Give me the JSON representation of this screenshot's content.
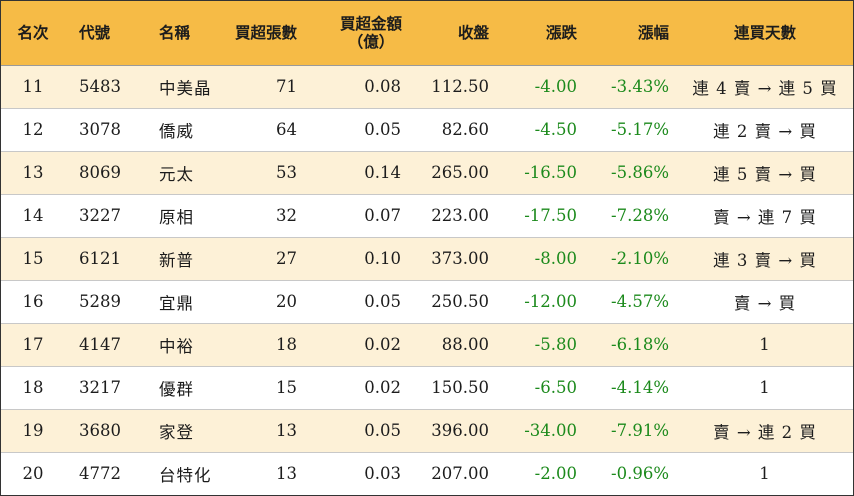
{
  "colors": {
    "header_bg": "#f6bb46",
    "row_alt_bg": "#fdf1d7",
    "negative": "#1c8a1c"
  },
  "header": {
    "rank": "名次",
    "code": "代號",
    "name": "名稱",
    "volume": "買超張數",
    "amount_line1": "買超金額",
    "amount_line2": "（億）",
    "close": "收盤",
    "change": "漲跌",
    "change_pct": "漲幅",
    "days": "連買天數"
  },
  "rows": [
    {
      "rank": "11",
      "code": "5483",
      "name": "中美晶",
      "volume": "71",
      "amount": "0.08",
      "close": "112.50",
      "change": "-4.00",
      "change_pct": "-3.43%",
      "days": "連 4 賣 → 連 5 買"
    },
    {
      "rank": "12",
      "code": "3078",
      "name": "僑威",
      "volume": "64",
      "amount": "0.05",
      "close": "82.60",
      "change": "-4.50",
      "change_pct": "-5.17%",
      "days": "連 2 賣 → 買"
    },
    {
      "rank": "13",
      "code": "8069",
      "name": "元太",
      "volume": "53",
      "amount": "0.14",
      "close": "265.00",
      "change": "-16.50",
      "change_pct": "-5.86%",
      "days": "連 5 賣 → 買"
    },
    {
      "rank": "14",
      "code": "3227",
      "name": "原相",
      "volume": "32",
      "amount": "0.07",
      "close": "223.00",
      "change": "-17.50",
      "change_pct": "-7.28%",
      "days": "賣 → 連 7 買"
    },
    {
      "rank": "15",
      "code": "6121",
      "name": "新普",
      "volume": "27",
      "amount": "0.10",
      "close": "373.00",
      "change": "-8.00",
      "change_pct": "-2.10%",
      "days": "連 3 賣 → 買"
    },
    {
      "rank": "16",
      "code": "5289",
      "name": "宜鼎",
      "volume": "20",
      "amount": "0.05",
      "close": "250.50",
      "change": "-12.00",
      "change_pct": "-4.57%",
      "days": "賣 → 買"
    },
    {
      "rank": "17",
      "code": "4147",
      "name": "中裕",
      "volume": "18",
      "amount": "0.02",
      "close": "88.00",
      "change": "-5.80",
      "change_pct": "-6.18%",
      "days": "1"
    },
    {
      "rank": "18",
      "code": "3217",
      "name": "優群",
      "volume": "15",
      "amount": "0.02",
      "close": "150.50",
      "change": "-6.50",
      "change_pct": "-4.14%",
      "days": "1"
    },
    {
      "rank": "19",
      "code": "3680",
      "name": "家登",
      "volume": "13",
      "amount": "0.05",
      "close": "396.00",
      "change": "-34.00",
      "change_pct": "-7.91%",
      "days": "賣 → 連 2 買"
    },
    {
      "rank": "20",
      "code": "4772",
      "name": "台特化",
      "volume": "13",
      "amount": "0.03",
      "close": "207.00",
      "change": "-2.00",
      "change_pct": "-0.96%",
      "days": "1"
    }
  ]
}
